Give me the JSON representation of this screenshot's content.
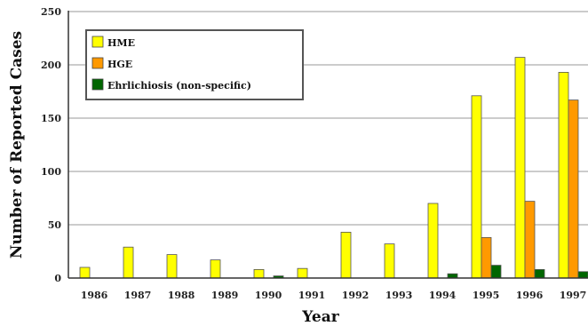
{
  "chart_data": {
    "type": "bar",
    "title": "",
    "xlabel": "Year",
    "ylabel": "Number of Reported Cases",
    "ylim": [
      0,
      250
    ],
    "yticks": [
      0,
      50,
      100,
      150,
      200,
      250
    ],
    "grid": true,
    "legend_position": "top-left",
    "categories": [
      "1986",
      "1987",
      "1988",
      "1989",
      "1990",
      "1991",
      "1992",
      "1993",
      "1994",
      "1995",
      "1996",
      "1997"
    ],
    "series": [
      {
        "name": "HME",
        "color": "#ffff00",
        "values": [
          10,
          29,
          22,
          17,
          8,
          9,
          43,
          32,
          70,
          171,
          207,
          193
        ]
      },
      {
        "name": "HGE",
        "color": "#ff9900",
        "values": [
          0,
          0,
          0,
          0,
          0,
          0,
          0,
          0,
          0,
          38,
          72,
          167
        ]
      },
      {
        "name": "Ehrlichiosis (non-specific)",
        "color": "#006600",
        "values": [
          0,
          0,
          0,
          0,
          2,
          0,
          0,
          0,
          4,
          12,
          8,
          6
        ]
      }
    ]
  }
}
